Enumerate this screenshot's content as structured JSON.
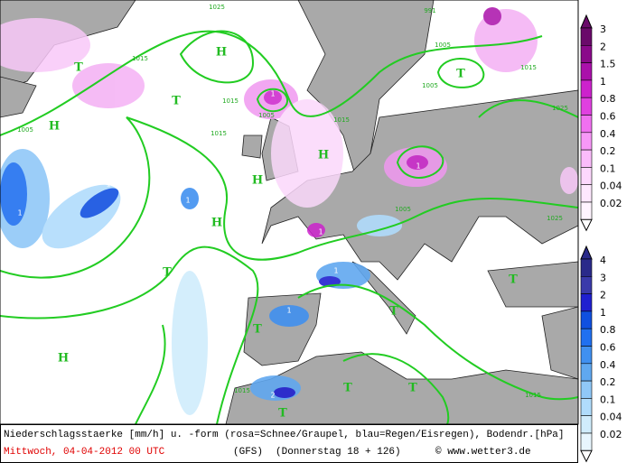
{
  "map": {
    "pressure_labels": [
      "1025",
      "991",
      "1005",
      "1015",
      "1015",
      "1005",
      "1005",
      "1015",
      "1015",
      "1005",
      "1025",
      "1015",
      "1005",
      "1025",
      "1015",
      "1015"
    ],
    "centers": [
      "H",
      "T",
      "T",
      "T",
      "H",
      "H",
      "H",
      "H",
      "T",
      "T",
      "H",
      "T",
      "T",
      "T",
      "T",
      "T"
    ],
    "cell_labels": [
      "1",
      "1",
      "1",
      "1",
      "1",
      "1",
      "1",
      "1",
      "2"
    ]
  },
  "legend": {
    "snow": [
      "3",
      "2",
      "1.5",
      "1",
      "0.8",
      "0.6",
      "0.4",
      "0.2",
      "0.1",
      "0.04",
      "0.02"
    ],
    "rain": [
      "4",
      "3",
      "2",
      "1",
      "0.8",
      "0.6",
      "0.4",
      "0.2",
      "0.1",
      "0.04",
      "0.02"
    ]
  },
  "footer": {
    "description": "Niederschlagsstaerke [mm/h] u. -form (rosa=Schnee/Graupel, blau=Regen/Eisregen), Bodendr.[hPa]",
    "date": "Mittwoch, 04-04-2012  00 UTC",
    "model": "(GFS)",
    "run": "(Donnerstag 18 + 126)",
    "source": "© www.wetter3.de"
  }
}
